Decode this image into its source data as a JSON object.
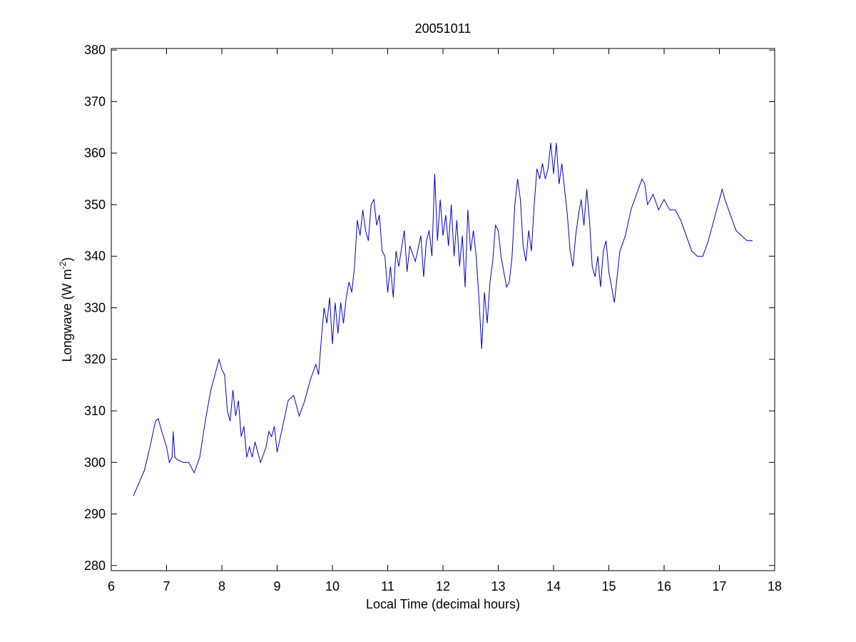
{
  "chart_data": {
    "type": "line",
    "title": "20051011",
    "x_label": "Local Time (decimal hours)",
    "y_label": [
      "Longwave (W m",
      "-2",
      ")"
    ],
    "xlim": [
      6,
      18
    ],
    "ylim": [
      279,
      380.3
    ],
    "xticks": [
      6,
      7,
      8,
      9,
      10,
      11,
      12,
      13,
      14,
      15,
      16,
      17,
      18
    ],
    "yticks": [
      280,
      290,
      300,
      310,
      320,
      330,
      340,
      350,
      360,
      370,
      380
    ],
    "series": [
      {
        "color": "#0000cc",
        "x": [
          6.4,
          6.5,
          6.6,
          6.7,
          6.8,
          6.85,
          6.9,
          7.0,
          7.05,
          7.1,
          7.12,
          7.15,
          7.2,
          7.3,
          7.4,
          7.5,
          7.6,
          7.7,
          7.8,
          7.9,
          7.95,
          8.0,
          8.05,
          8.1,
          8.15,
          8.2,
          8.25,
          8.3,
          8.35,
          8.4,
          8.45,
          8.5,
          8.55,
          8.6,
          8.7,
          8.8,
          8.85,
          8.9,
          8.95,
          9.0,
          9.1,
          9.2,
          9.3,
          9.4,
          9.5,
          9.6,
          9.7,
          9.75,
          9.8,
          9.85,
          9.9,
          9.95,
          10.0,
          10.05,
          10.1,
          10.15,
          10.2,
          10.25,
          10.3,
          10.35,
          10.4,
          10.45,
          10.5,
          10.55,
          10.6,
          10.65,
          10.7,
          10.75,
          10.8,
          10.85,
          10.9,
          10.95,
          11.0,
          11.05,
          11.1,
          11.15,
          11.2,
          11.3,
          11.35,
          11.4,
          11.5,
          11.6,
          11.65,
          11.7,
          11.75,
          11.8,
          11.85,
          11.9,
          11.95,
          12.0,
          12.05,
          12.1,
          12.15,
          12.2,
          12.25,
          12.3,
          12.35,
          12.4,
          12.45,
          12.5,
          12.55,
          12.6,
          12.65,
          12.7,
          12.75,
          12.8,
          12.85,
          12.9,
          12.95,
          13.0,
          13.05,
          13.1,
          13.15,
          13.2,
          13.25,
          13.3,
          13.35,
          13.4,
          13.45,
          13.5,
          13.55,
          13.6,
          13.65,
          13.7,
          13.75,
          13.8,
          13.85,
          13.9,
          13.95,
          14.0,
          14.05,
          14.1,
          14.15,
          14.2,
          14.25,
          14.3,
          14.35,
          14.4,
          14.45,
          14.5,
          14.55,
          14.6,
          14.65,
          14.7,
          14.75,
          14.8,
          14.85,
          14.9,
          14.95,
          15.0,
          15.05,
          15.1,
          15.15,
          15.2,
          15.3,
          15.4,
          15.5,
          15.6,
          15.65,
          15.7,
          15.8,
          15.9,
          16.0,
          16.1,
          16.2,
          16.3,
          16.4,
          16.5,
          16.6,
          16.7,
          16.8,
          16.9,
          17.0,
          17.05,
          17.1,
          17.2,
          17.3,
          17.4,
          17.5,
          17.6
        ],
        "values": [
          293.5,
          296,
          298.5,
          303,
          308,
          308.5,
          306.5,
          303,
          300,
          301,
          306,
          301,
          300.5,
          300,
          300,
          298,
          301,
          308,
          314,
          318,
          320,
          318,
          317,
          310,
          308,
          314,
          309,
          312,
          305,
          307,
          301,
          303,
          301,
          304,
          300,
          303,
          306,
          305,
          307,
          302,
          307,
          312,
          313,
          309,
          312,
          316,
          319,
          317,
          324,
          330,
          327,
          332,
          323,
          331,
          325,
          331,
          327,
          332,
          335,
          333,
          338,
          347,
          344,
          349,
          345,
          343,
          350,
          351,
          346,
          348,
          341,
          340,
          333,
          338,
          332,
          341,
          338,
          345,
          337,
          342,
          339,
          344,
          336,
          343,
          345,
          340,
          356,
          343,
          351,
          344,
          348,
          342,
          350,
          340,
          347,
          338,
          344,
          334,
          349,
          341,
          345,
          340,
          332,
          322,
          333,
          327,
          335,
          339,
          346,
          345,
          340,
          337,
          334,
          335,
          340,
          350,
          355,
          351,
          342,
          339,
          345,
          341,
          350,
          357,
          355,
          358,
          355,
          357,
          362,
          356,
          362,
          354,
          358,
          353,
          348,
          341,
          338,
          344,
          348,
          351,
          346,
          353,
          347,
          338,
          336,
          340,
          334,
          341,
          343,
          337,
          334,
          331,
          336,
          341,
          344,
          349,
          352,
          355,
          354,
          350,
          352,
          349,
          351,
          349,
          349,
          347,
          344,
          341,
          340,
          340,
          343,
          347,
          351,
          353,
          351,
          348,
          345,
          344,
          343,
          343
        ]
      }
    ]
  }
}
